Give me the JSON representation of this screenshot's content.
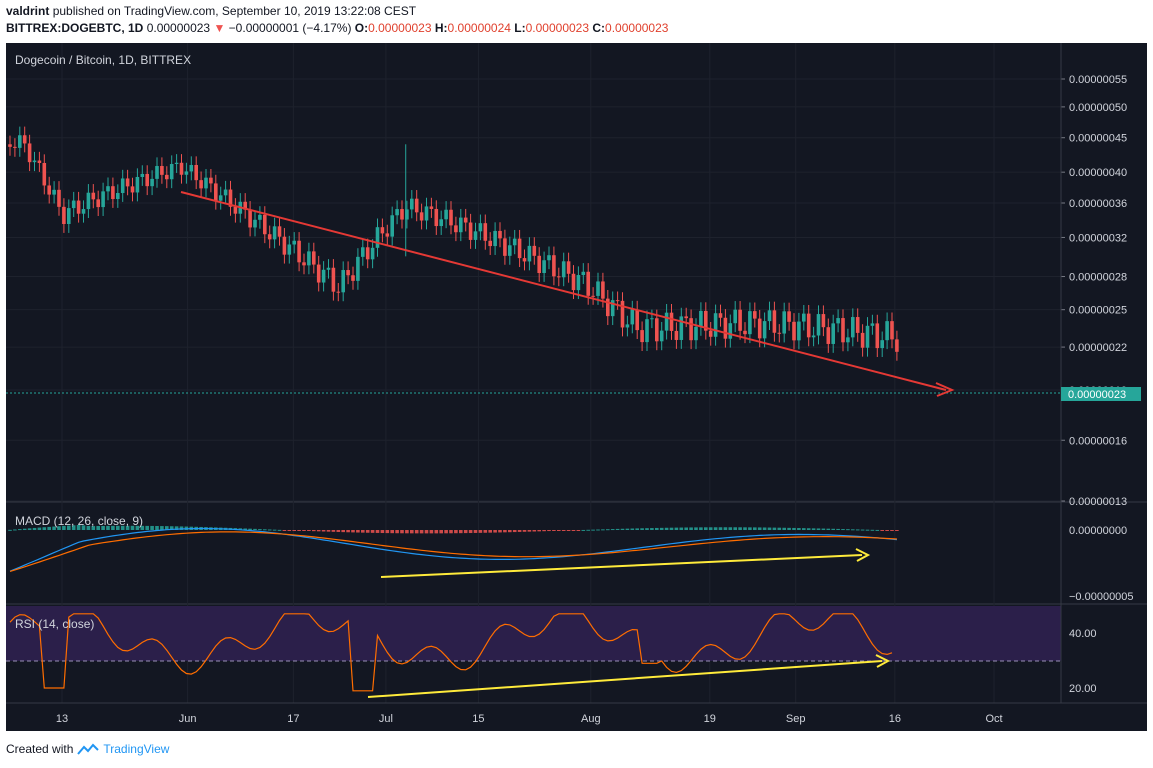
{
  "header": {
    "author": "valdrint",
    "published_text": "published on TradingView.com, September 10, 2019 13:22:08 CEST",
    "symbol": "BITTREX:DOGEBTC, 1D",
    "last": "0.00000023",
    "change_arrow": "▼",
    "change": "−0.00000001 (−4.17%)",
    "o_label": "O:",
    "o_value": "0.00000023",
    "h_label": "H:",
    "h_value": "0.00000024",
    "l_label": "L:",
    "l_value": "0.00000023",
    "c_label": "C:",
    "c_value": "0.00000023"
  },
  "footer": {
    "created_with": "Created with",
    "brand": "TradingView"
  },
  "colors": {
    "background": "#131722",
    "up": "#26a69a",
    "down": "#ef5350",
    "trendline": "#e53935",
    "annotation": "#ffeb3b",
    "macd_line": "#2196f3",
    "signal_line": "#ff6d00",
    "rsi_line": "#ff6d00",
    "rsi_band": "#2b1f4a"
  },
  "chart_data": [
    {
      "type": "candlestick",
      "title": "Dogecoin / Bitcoin, 1D, BITTREX",
      "last_price_label": "0.00000023",
      "ylim": [
        1.3e-08,
        5.6e-07
      ],
      "y_ticks": [
        "0.00000055",
        "0.00000050",
        "0.00000045",
        "0.00000040",
        "0.00000036",
        "0.00000032",
        "0.00000028",
        "0.00000025",
        "0.00000022",
        "0.00000019",
        "0.00000016",
        "0.00000013"
      ],
      "x_ticks": [
        "13",
        "Jun",
        "17",
        "Jul",
        "15",
        "Aug",
        "19",
        "Sep",
        "16",
        "Oct"
      ],
      "key_points": [
        {
          "date": "2019-05-07",
          "close": 4.4e-07
        },
        {
          "date": "2019-05-13",
          "close": 3.4e-07
        },
        {
          "date": "2019-05-31",
          "close": 4.1e-07
        },
        {
          "date": "2019-06-24",
          "close": 2.7e-07
        },
        {
          "date": "2019-07-04",
          "high": 4.4e-07,
          "close": 3.5e-07
        },
        {
          "date": "2019-07-31",
          "close": 2.8e-07
        },
        {
          "date": "2019-08-08",
          "close": 2.4e-07
        },
        {
          "date": "2019-09-04",
          "close": 2.3e-07
        },
        {
          "date": "2019-09-10",
          "close": 2.3e-07
        }
      ],
      "trendline": {
        "from": {
          "date": "2019-05-31",
          "value": 4.2e-07
        },
        "to": {
          "date": "2019-09-18",
          "value": 2.3e-07
        }
      }
    },
    {
      "type": "line",
      "title": "MACD (12, 26, close, 9)",
      "y_ticks": [
        "0.00000000",
        "−0.00000005"
      ]
    },
    {
      "type": "line",
      "title": "RSI (14, close)",
      "y_ticks": [
        "40.00",
        "20.00"
      ],
      "band": [
        30,
        70
      ]
    }
  ]
}
